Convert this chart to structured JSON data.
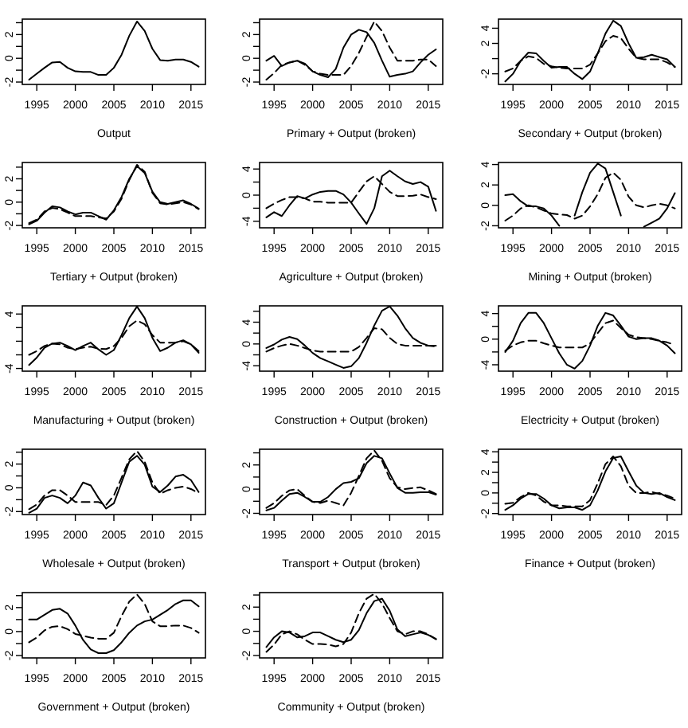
{
  "chart_data": [
    {
      "type": "line",
      "xlabel": "Output",
      "x": [
        1994,
        1995,
        1996,
        1997,
        1998,
        1999,
        2000,
        2001,
        2002,
        2003,
        2004,
        2005,
        2006,
        2007,
        2008,
        2009,
        2010,
        2011,
        2012,
        2013,
        2014,
        2015,
        2016
      ],
      "xlim": [
        1993.12,
        2016.88
      ],
      "xticks": [
        1995,
        2000,
        2005,
        2010,
        2015
      ],
      "ylim": [
        -2.2,
        3.3
      ],
      "yticks": [
        -2,
        {
          "value": -1,
          "label": null
        },
        0,
        {
          "value": 1,
          "label": null
        },
        2,
        {
          "value": 3,
          "label": null
        }
      ],
      "series": [
        {
          "color": "#000000",
          "line_style": "solid",
          "values": [
            -1.8,
            -1.3,
            -0.8,
            -0.35,
            -0.3,
            -0.8,
            -1.1,
            -1.15,
            -1.15,
            -1.4,
            -1.4,
            -0.8,
            0.3,
            1.9,
            3.1,
            2.3,
            0.8,
            -0.15,
            -0.2,
            -0.1,
            -0.1,
            -0.3,
            -0.7
          ]
        }
      ]
    },
    {
      "type": "line",
      "xlabel": "Primary + Output (broken)",
      "x": [
        1994,
        1995,
        1996,
        1997,
        1998,
        1999,
        2000,
        2001,
        2002,
        2003,
        2004,
        2005,
        2006,
        2007,
        2008,
        2009,
        2010,
        2011,
        2012,
        2013,
        2014,
        2015,
        2016
      ],
      "xlim": [
        1993.12,
        2016.88
      ],
      "xticks": [
        1995,
        2000,
        2005,
        2010,
        2015
      ],
      "ylim": [
        -2.2,
        3.3
      ],
      "yticks": [
        -2,
        {
          "value": -1,
          "label": null
        },
        0,
        {
          "value": 1,
          "label": null
        },
        2,
        {
          "value": 3,
          "label": null
        }
      ],
      "series": [
        {
          "color": "#000000",
          "line_style": "solid",
          "values": [
            -0.2,
            0.2,
            -0.65,
            -0.35,
            -0.2,
            -0.45,
            -1.1,
            -1.4,
            -1.6,
            -0.9,
            0.9,
            2.0,
            2.4,
            2.2,
            1.3,
            -0.2,
            -1.55,
            -1.4,
            -1.3,
            -1.1,
            -0.35,
            0.3,
            0.75
          ]
        },
        {
          "color": "#000000",
          "line_style": "dashed",
          "values": [
            -1.8,
            -1.25,
            -0.55,
            -0.35,
            -0.2,
            -0.55,
            -1.1,
            -1.3,
            -1.4,
            -1.4,
            -1.4,
            -0.65,
            0.45,
            1.8,
            3.1,
            2.3,
            0.9,
            -0.2,
            -0.2,
            -0.2,
            -0.1,
            -0.1,
            -0.65
          ]
        }
      ]
    },
    {
      "type": "line",
      "xlabel": "Secondary + Output (broken)",
      "x": [
        1994,
        1995,
        1996,
        1997,
        1998,
        1999,
        2000,
        2001,
        2002,
        2003,
        2004,
        2005,
        2006,
        2007,
        2008,
        2009,
        2010,
        2011,
        2012,
        2013,
        2014,
        2015,
        2016
      ],
      "xlim": [
        1993.12,
        2016.88
      ],
      "xticks": [
        1995,
        2000,
        2005,
        2010,
        2015
      ],
      "ylim": [
        -3.4,
        5.2
      ],
      "yticks": [
        -2,
        {
          "value": 0,
          "label": null
        },
        2,
        4
      ],
      "series": [
        {
          "color": "#000000",
          "line_style": "solid",
          "values": [
            -3.0,
            -2.0,
            -0.3,
            0.8,
            0.7,
            -0.3,
            -1.2,
            -1.1,
            -1.1,
            -2.0,
            -2.7,
            -1.7,
            0.7,
            3.3,
            5.0,
            4.3,
            2.0,
            0.1,
            0.2,
            0.5,
            0.2,
            -0.1,
            -1.1
          ]
        },
        {
          "color": "#000000",
          "line_style": "dashed",
          "values": [
            -1.7,
            -1.3,
            -0.3,
            0.3,
            0.1,
            -0.7,
            -1.0,
            -1.2,
            -1.3,
            -1.3,
            -1.3,
            -0.8,
            0.7,
            2.3,
            3.0,
            2.7,
            1.3,
            0.1,
            -0.1,
            -0.1,
            -0.1,
            -0.5,
            -1.1
          ]
        }
      ]
    },
    {
      "type": "line",
      "xlabel": "Tertiary + Output (broken)",
      "x": [
        1994,
        1995,
        1996,
        1997,
        1998,
        1999,
        2000,
        2001,
        2002,
        2003,
        2004,
        2005,
        2006,
        2007,
        2008,
        2009,
        2010,
        2011,
        2012,
        2013,
        2014,
        2015,
        2016
      ],
      "xlim": [
        1993.12,
        2016.88
      ],
      "xticks": [
        1995,
        2000,
        2005,
        2010,
        2015
      ],
      "ylim": [
        -2.2,
        3.4
      ],
      "yticks": [
        -2,
        {
          "value": -1,
          "label": null
        },
        0,
        {
          "value": 1,
          "label": null
        },
        2,
        {
          "value": 3,
          "label": null
        }
      ],
      "series": [
        {
          "color": "#000000",
          "line_style": "solid",
          "values": [
            -1.9,
            -1.6,
            -0.9,
            -0.35,
            -0.45,
            -0.8,
            -1.05,
            -0.9,
            -0.9,
            -1.2,
            -1.5,
            -0.7,
            0.45,
            2.0,
            3.1,
            2.5,
            0.9,
            0,
            -0.15,
            0,
            0.15,
            -0.15,
            -0.55
          ]
        },
        {
          "color": "#000000",
          "line_style": "dashed",
          "values": [
            -1.8,
            -1.5,
            -0.8,
            -0.5,
            -0.6,
            -0.9,
            -1.2,
            -1.2,
            -1.2,
            -1.3,
            -1.4,
            -0.8,
            0.3,
            1.9,
            3.2,
            2.6,
            0.8,
            -0.1,
            -0.2,
            -0.1,
            0,
            -0.2,
            -0.6
          ]
        }
      ]
    },
    {
      "type": "line",
      "xlabel": "Agriculture + Output (broken)",
      "x": [
        1994,
        1995,
        1996,
        1997,
        1998,
        1999,
        2000,
        2001,
        2002,
        2003,
        2004,
        2005,
        2006,
        2007,
        2008,
        2009,
        2010,
        2011,
        2012,
        2013,
        2014,
        2015,
        2016
      ],
      "xlim": [
        1993.12,
        2016.88
      ],
      "xticks": [
        1995,
        2000,
        2005,
        2010,
        2015
      ],
      "ylim": [
        -5.0,
        5.0
      ],
      "yticks": [
        -4,
        {
          "value": -2,
          "label": null
        },
        0,
        {
          "value": 2,
          "label": null
        },
        4
      ],
      "series": [
        {
          "color": "#000000",
          "line_style": "solid",
          "values": [
            -3.4,
            -2.6,
            -3.2,
            -1.55,
            -0.15,
            -0.5,
            0.1,
            0.5,
            0.65,
            0.65,
            0.1,
            -1.15,
            -2.8,
            -4.4,
            -2.0,
            2.9,
            3.75,
            2.9,
            2.1,
            1.7,
            2.0,
            1.3,
            -2.4
          ]
        },
        {
          "color": "#000000",
          "line_style": "dashed",
          "values": [
            -2.0,
            -1.3,
            -0.75,
            -0.3,
            -0.3,
            -0.5,
            -1.0,
            -1.0,
            -1.15,
            -1.15,
            -1.15,
            -1.15,
            0.5,
            2.1,
            2.9,
            1.7,
            0.5,
            -0.15,
            -0.15,
            -0.1,
            0.1,
            -0.3,
            -0.6
          ]
        }
      ]
    },
    {
      "type": "line",
      "xlabel": "Mining + Output (broken)",
      "x": [
        1994,
        1995,
        1996,
        1997,
        1998,
        1999,
        2000,
        2001,
        2002,
        2003,
        2004,
        2005,
        2006,
        2007,
        2008,
        2009,
        2010,
        2011,
        2012,
        2013,
        2014,
        2015,
        2016
      ],
      "xlim": [
        1993.12,
        2016.88
      ],
      "xticks": [
        1995,
        2000,
        2005,
        2010,
        2015
      ],
      "ylim": [
        -2.2,
        4.2
      ],
      "yticks": [
        -2,
        0,
        2,
        4
      ],
      "series": [
        {
          "color": "#000000",
          "line_style": "solid",
          "values": [
            1.0,
            1.1,
            0.4,
            -0.1,
            -0.1,
            -0.3,
            -1.0,
            -2.0,
            null,
            -1.0,
            1.3,
            3.2,
            4.1,
            3.6,
            1.3,
            -1.0,
            null,
            null,
            -2.1,
            -1.7,
            -1.3,
            -0.3,
            1.2
          ]
        },
        {
          "color": "#000000",
          "line_style": "dashed",
          "values": [
            -1.5,
            -1.0,
            -0.3,
            0,
            -0.2,
            -0.5,
            -0.8,
            -0.9,
            -0.95,
            -1.3,
            -1.0,
            -0.1,
            1.1,
            2.7,
            3.2,
            2.5,
            0.85,
            0,
            -0.2,
            0,
            0.15,
            0,
            -0.3
          ]
        }
      ]
    },
    {
      "type": "line",
      "xlabel": "Manufacturing + Output (broken)",
      "x": [
        1994,
        1995,
        1996,
        1997,
        1998,
        1999,
        2000,
        2001,
        2002,
        2003,
        2004,
        2005,
        2006,
        2007,
        2008,
        2009,
        2010,
        2011,
        2012,
        2013,
        2014,
        2015,
        2016
      ],
      "xlim": [
        1993.12,
        2016.88
      ],
      "xticks": [
        1995,
        2000,
        2005,
        2010,
        2015
      ],
      "ylim": [
        -4.4,
        5.2
      ],
      "yticks": [
        -4,
        {
          "value": -2,
          "label": null
        },
        {
          "value": 0,
          "label": null
        },
        {
          "value": 2,
          "label": null
        },
        4
      ],
      "series": [
        {
          "color": "#000000",
          "line_style": "solid",
          "values": [
            -3.5,
            -2.4,
            -0.95,
            -0.35,
            -0.2,
            -0.7,
            -1.3,
            -0.7,
            -0.2,
            -1.2,
            -2.0,
            -1.3,
            0.9,
            3.4,
            5.1,
            3.4,
            0.5,
            -1.45,
            -0.95,
            -0.2,
            0.15,
            -0.45,
            -1.7
          ]
        },
        {
          "color": "#000000",
          "line_style": "dashed",
          "values": [
            -2.0,
            -1.45,
            -0.7,
            -0.35,
            -0.45,
            -0.95,
            -1.15,
            -0.95,
            -0.8,
            -1.1,
            -1.15,
            -0.7,
            0.5,
            2.2,
            3.05,
            2.5,
            0.9,
            -0.2,
            -0.2,
            -0.2,
            0,
            -0.45,
            -1.45
          ]
        }
      ]
    },
    {
      "type": "line",
      "xlabel": "Construction + Output (broken)",
      "x": [
        1994,
        1995,
        1996,
        1997,
        1998,
        1999,
        2000,
        2001,
        2002,
        2003,
        2004,
        2005,
        2006,
        2007,
        2008,
        2009,
        2010,
        2011,
        2012,
        2013,
        2014,
        2015,
        2016
      ],
      "xlim": [
        1993.12,
        2016.88
      ],
      "xticks": [
        1995,
        2000,
        2005,
        2010,
        2015
      ],
      "ylim": [
        -5.0,
        7.0
      ],
      "yticks": [
        -4,
        {
          "value": -2,
          "label": null
        },
        0,
        {
          "value": 2,
          "label": null
        },
        4,
        {
          "value": 6,
          "label": null
        }
      ],
      "series": [
        {
          "color": "#000000",
          "line_style": "solid",
          "values": [
            -0.75,
            -0.1,
            0.8,
            1.3,
            0.9,
            -0.3,
            -1.65,
            -2.6,
            -3.2,
            -3.8,
            -4.4,
            -4.1,
            -2.6,
            0.2,
            3.4,
            6.1,
            6.9,
            5.2,
            2.9,
            1.1,
            0.2,
            -0.3,
            -0.3
          ]
        },
        {
          "color": "#000000",
          "line_style": "dashed",
          "values": [
            -1.4,
            -0.75,
            -0.3,
            0,
            -0.3,
            -0.75,
            -1.2,
            -1.4,
            -1.4,
            -1.4,
            -1.4,
            -1.4,
            -0.55,
            1.1,
            2.9,
            2.7,
            1.1,
            0,
            -0.3,
            -0.3,
            -0.3,
            -0.3,
            -0.45
          ]
        }
      ]
    },
    {
      "type": "line",
      "xlabel": "Electricity + Output (broken)",
      "x": [
        1994,
        1995,
        1996,
        1997,
        1998,
        1999,
        2000,
        2001,
        2002,
        2003,
        2004,
        2005,
        2006,
        2007,
        2008,
        2009,
        2010,
        2011,
        2012,
        2013,
        2014,
        2015,
        2016
      ],
      "xlim": [
        1993.12,
        2016.88
      ],
      "xticks": [
        1995,
        2000,
        2005,
        2010,
        2015
      ],
      "ylim": [
        -5.0,
        5.2
      ],
      "yticks": [
        -4,
        {
          "value": -2,
          "label": null
        },
        0,
        {
          "value": 2,
          "label": null
        },
        4
      ],
      "series": [
        {
          "color": "#000000",
          "line_style": "solid",
          "values": [
            -2.0,
            -0.25,
            2.5,
            4.1,
            4.1,
            2.5,
            0.15,
            -2.2,
            -4.0,
            -4.6,
            -3.4,
            -1.0,
            2.1,
            4.1,
            3.7,
            2.1,
            0.4,
            0,
            0.15,
            0.15,
            -0.25,
            -1.0,
            -2.2
          ]
        },
        {
          "color": "#000000",
          "line_style": "dashed",
          "values": [
            -1.8,
            -1.0,
            -0.5,
            -0.25,
            -0.25,
            -0.65,
            -1.0,
            -1.3,
            -1.3,
            -1.3,
            -1.3,
            -0.65,
            0.95,
            2.5,
            2.9,
            1.75,
            0.7,
            0.3,
            0.15,
            0,
            -0.25,
            -0.5,
            -0.9
          ]
        }
      ]
    },
    {
      "type": "line",
      "xlabel": "Wholesale + Output (broken)",
      "x": [
        1994,
        1995,
        1996,
        1997,
        1998,
        1999,
        2000,
        2001,
        2002,
        2003,
        2004,
        2005,
        2006,
        2007,
        2008,
        2009,
        2010,
        2011,
        2012,
        2013,
        2014,
        2015,
        2016
      ],
      "xlim": [
        1993.12,
        2016.88
      ],
      "xticks": [
        1995,
        2000,
        2005,
        2010,
        2015
      ],
      "ylim": [
        -2.25,
        3.25
      ],
      "yticks": [
        -2,
        {
          "value": -1,
          "label": null
        },
        0,
        {
          "value": 1,
          "label": null
        },
        2,
        {
          "value": 3,
          "label": null
        }
      ],
      "series": [
        {
          "color": "#000000",
          "line_style": "solid",
          "values": [
            -2.1,
            -1.75,
            -0.85,
            -0.65,
            -0.85,
            -1.3,
            -0.65,
            0.45,
            0.2,
            -0.85,
            -1.75,
            -1.3,
            0.45,
            2.2,
            2.7,
            1.95,
            0.1,
            -0.35,
            0.2,
            0.95,
            1.1,
            0.65,
            -0.35
          ]
        },
        {
          "color": "#000000",
          "line_style": "dashed",
          "values": [
            -1.8,
            -1.4,
            -0.65,
            -0.2,
            -0.2,
            -0.65,
            -1.2,
            -1.2,
            -1.2,
            -1.2,
            -1.45,
            -0.65,
            0.85,
            2.4,
            3.1,
            2.2,
            0.45,
            -0.5,
            -0.2,
            0,
            0.1,
            -0.1,
            -0.45
          ]
        }
      ]
    },
    {
      "type": "line",
      "xlabel": "Transport + Output (broken)",
      "x": [
        1994,
        1995,
        1996,
        1997,
        1998,
        1999,
        2000,
        2001,
        2002,
        2003,
        2004,
        2005,
        2006,
        2007,
        2008,
        2009,
        2010,
        2011,
        2012,
        2013,
        2014,
        2015,
        2016
      ],
      "xlim": [
        1993.12,
        2016.88
      ],
      "xticks": [
        1995,
        2000,
        2005,
        2010,
        2015
      ],
      "ylim": [
        -2.1,
        3.3
      ],
      "yticks": [
        -2,
        {
          "value": -1,
          "label": null
        },
        0,
        {
          "value": 1,
          "label": null
        },
        2,
        {
          "value": 3,
          "label": null
        }
      ],
      "series": [
        {
          "color": "#000000",
          "line_style": "solid",
          "values": [
            -1.75,
            -1.55,
            -0.95,
            -0.4,
            -0.3,
            -0.65,
            -1.05,
            -1.05,
            -0.65,
            0,
            0.5,
            0.6,
            0.9,
            2.15,
            2.75,
            2.55,
            1.3,
            0.1,
            -0.3,
            -0.3,
            -0.25,
            -0.25,
            -0.45
          ]
        },
        {
          "color": "#000000",
          "line_style": "dashed",
          "values": [
            -1.55,
            -1.15,
            -0.55,
            -0.1,
            0,
            -0.55,
            -1.05,
            -1.15,
            -0.95,
            -1.15,
            -1.35,
            -0.3,
            1.1,
            2.55,
            3.2,
            2.35,
            0.9,
            0.15,
            0,
            0.1,
            0.15,
            -0.1,
            -0.4
          ]
        }
      ]
    },
    {
      "type": "line",
      "xlabel": "Finance + Output (broken)",
      "x": [
        1994,
        1995,
        1996,
        1997,
        1998,
        1999,
        2000,
        2001,
        2002,
        2003,
        2004,
        2005,
        2006,
        2007,
        2008,
        2009,
        2010,
        2011,
        2012,
        2013,
        2014,
        2015,
        2016
      ],
      "xlim": [
        1993.12,
        2016.88
      ],
      "xticks": [
        1995,
        2000,
        2005,
        2010,
        2015
      ],
      "ylim": [
        -2.1,
        4.25
      ],
      "yticks": [
        -2,
        {
          "value": -1,
          "label": null
        },
        0,
        {
          "value": 1,
          "label": null
        },
        2,
        {
          "value": 3,
          "label": null
        },
        4
      ],
      "series": [
        {
          "color": "#000000",
          "line_style": "solid",
          "values": [
            -1.65,
            -1.2,
            -0.55,
            -0.1,
            -0.1,
            -0.55,
            -1.2,
            -1.5,
            -1.4,
            -1.4,
            -1.65,
            -1.2,
            0.25,
            2.1,
            3.4,
            3.55,
            2.1,
            0.7,
            0,
            -0.1,
            0,
            -0.4,
            -0.7
          ]
        },
        {
          "color": "#000000",
          "line_style": "dashed",
          "values": [
            -1.05,
            -0.95,
            -0.4,
            0,
            -0.25,
            -0.85,
            -1.2,
            -1.2,
            -1.3,
            -1.3,
            -1.3,
            -0.7,
            0.95,
            2.8,
            3.55,
            2.6,
            0.7,
            0,
            0,
            0.1,
            -0.1,
            -0.25,
            -0.55
          ]
        }
      ]
    },
    {
      "type": "line",
      "xlabel": "Government + Output (broken)",
      "x": [
        1994,
        1995,
        1996,
        1997,
        1998,
        1999,
        2000,
        2001,
        2002,
        2003,
        2004,
        2005,
        2006,
        2007,
        2008,
        2009,
        2010,
        2011,
        2012,
        2013,
        2014,
        2015,
        2016
      ],
      "xlim": [
        1993.12,
        2016.88
      ],
      "xticks": [
        1995,
        2000,
        2005,
        2010,
        2015
      ],
      "ylim": [
        -2.2,
        3.25
      ],
      "yticks": [
        -2,
        {
          "value": -1,
          "label": null
        },
        0,
        {
          "value": 1,
          "label": null
        },
        2,
        {
          "value": 3,
          "label": null
        }
      ],
      "series": [
        {
          "color": "#000000",
          "line_style": "solid",
          "values": [
            1.0,
            1.0,
            1.4,
            1.8,
            1.9,
            1.5,
            0.5,
            -0.7,
            -1.5,
            -1.8,
            -1.8,
            -1.55,
            -0.9,
            -0.1,
            0.5,
            0.85,
            1.0,
            1.4,
            1.8,
            2.3,
            2.6,
            2.6,
            2.1
          ]
        },
        {
          "color": "#000000",
          "line_style": "dashed",
          "values": [
            -0.9,
            -0.5,
            0.1,
            0.4,
            0.45,
            0.2,
            -0.2,
            -0.35,
            -0.5,
            -0.6,
            -0.6,
            -0.1,
            1.3,
            2.5,
            3.1,
            2.3,
            0.85,
            0.45,
            0.45,
            0.5,
            0.5,
            0.3,
            -0.1
          ]
        }
      ]
    },
    {
      "type": "line",
      "xlabel": "Community + Output (broken)",
      "x": [
        1994,
        1995,
        1996,
        1997,
        1998,
        1999,
        2000,
        2001,
        2002,
        2003,
        2004,
        2005,
        2006,
        2007,
        2008,
        2009,
        2010,
        2011,
        2012,
        2013,
        2014,
        2015,
        2016
      ],
      "xlim": [
        1993.12,
        2016.88
      ],
      "xticks": [
        1995,
        2000,
        2005,
        2010,
        2015
      ],
      "ylim": [
        -2.2,
        3.2
      ],
      "yticks": [
        -2,
        {
          "value": -1,
          "label": null
        },
        0,
        {
          "value": 1,
          "label": null
        },
        2,
        {
          "value": 3,
          "label": null
        }
      ],
      "series": [
        {
          "color": "#000000",
          "line_style": "solid",
          "values": [
            -1.3,
            -0.5,
            0,
            -0.1,
            -0.5,
            -0.4,
            -0.1,
            -0.1,
            -0.4,
            -0.7,
            -0.9,
            -0.7,
            0.1,
            1.5,
            2.5,
            2.7,
            1.7,
            0.15,
            -0.4,
            -0.25,
            -0.1,
            -0.3,
            -0.65
          ]
        },
        {
          "color": "#000000",
          "line_style": "dashed",
          "values": [
            -1.7,
            -1.1,
            -0.25,
            0,
            -0.25,
            -0.7,
            -1.05,
            -1.05,
            -1.1,
            -1.25,
            -1.05,
            -0.1,
            1.5,
            2.7,
            3.1,
            2.3,
            1.1,
            0,
            -0.25,
            0,
            0,
            -0.25,
            -0.65
          ]
        }
      ]
    }
  ]
}
